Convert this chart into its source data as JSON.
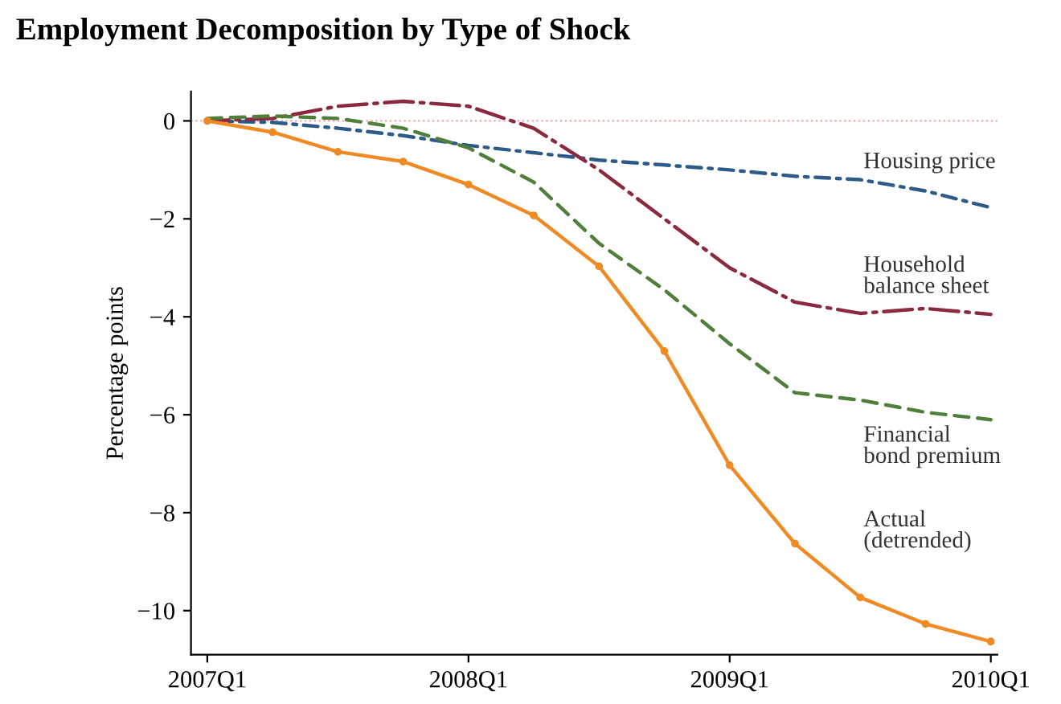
{
  "chart_data": {
    "type": "line",
    "title": "Employment Decomposition by Type of Shock",
    "ylabel": "Percentage points",
    "categories": [
      "2007Q1",
      null,
      null,
      null,
      "2008Q1",
      null,
      null,
      null,
      "2009Q1",
      null,
      null,
      null,
      "2010Q1"
    ],
    "ylim": [
      -10.9,
      0.6
    ],
    "yticks": [
      {
        "value": 0,
        "label": "0"
      },
      {
        "value": -2,
        "label": "−2"
      },
      {
        "value": -4,
        "label": "−4"
      },
      {
        "value": -6,
        "label": "−6"
      },
      {
        "value": -8,
        "label": "−8"
      },
      {
        "value": -10,
        "label": "−10"
      }
    ],
    "series": [
      {
        "name": "Housing price",
        "color": "#2e5a87",
        "line_style": "dashdot",
        "marker": "none",
        "values": [
          0,
          -0.03,
          -0.15,
          -0.3,
          -0.5,
          -0.65,
          -0.8,
          -0.9,
          -1.0,
          -1.13,
          -1.2,
          -1.43,
          -1.77
        ]
      },
      {
        "name": "Household\nbalance sheet",
        "color": "#8b2a3f",
        "line_style": "longdashdot",
        "marker": "none",
        "values": [
          0,
          0.05,
          0.3,
          0.4,
          0.3,
          -0.15,
          -1.0,
          -2.0,
          -3.0,
          -3.7,
          -3.93,
          -3.83,
          -3.95
        ]
      },
      {
        "name": "Financial\nbond premium",
        "color": "#4f7f3a",
        "line_style": "dashed",
        "marker": "none",
        "values": [
          0.05,
          0.1,
          0.05,
          -0.15,
          -0.55,
          -1.25,
          -2.5,
          -3.45,
          -4.55,
          -5.55,
          -5.7,
          -5.95,
          -6.1
        ]
      },
      {
        "name": "Actual\n(detrended)",
        "color": "#f08a24",
        "line_style": "solid",
        "marker": "circle",
        "values": [
          0,
          -0.23,
          -0.63,
          -0.83,
          -1.3,
          -1.93,
          -2.97,
          -4.7,
          -7.03,
          -8.63,
          -9.73,
          -10.27,
          -10.63
        ]
      }
    ],
    "ref_lines": [
      {
        "axis": "y",
        "value": 0,
        "color": "#f4a0a8",
        "line_style": "dotted"
      }
    ],
    "legend": false,
    "grid": false
  }
}
